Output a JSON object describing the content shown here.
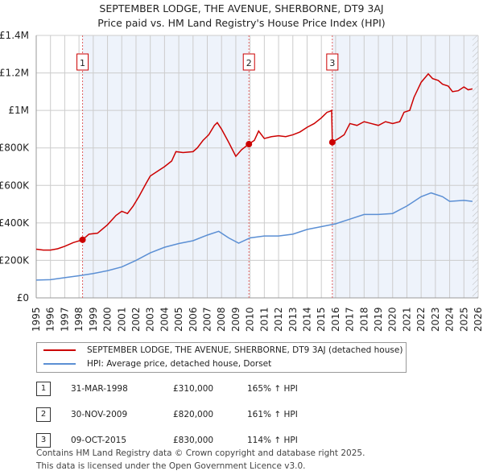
{
  "chart_data": {
    "type": "line",
    "title": "SEPTEMBER LODGE, THE AVENUE, SHERBORNE, DT9 3AJ",
    "subtitle": "Price paid vs. HM Land Registry's House Price Index (HPI)",
    "xlim": [
      1995,
      2026
    ],
    "ylim": [
      0,
      1400000
    ],
    "yticks": [
      {
        "v": 0,
        "label": "£0"
      },
      {
        "v": 200000,
        "label": "£200K"
      },
      {
        "v": 400000,
        "label": "£400K"
      },
      {
        "v": 600000,
        "label": "£600K"
      },
      {
        "v": 800000,
        "label": "£800K"
      },
      {
        "v": 1000000,
        "label": "£1M"
      },
      {
        "v": 1200000,
        "label": "£1.2M"
      },
      {
        "v": 1400000,
        "label": "£1.4M"
      }
    ],
    "xticks": [
      "1995",
      "1996",
      "1997",
      "1998",
      "1999",
      "2000",
      "2001",
      "2002",
      "2003",
      "2004",
      "2005",
      "2006",
      "2007",
      "2008",
      "2009",
      "2010",
      "2011",
      "2012",
      "2013",
      "2014",
      "2015",
      "2016",
      "2017",
      "2018",
      "2019",
      "2020",
      "2021",
      "2022",
      "2023",
      "2024",
      "2025",
      "2026"
    ],
    "series": [
      {
        "name": "SEPTEMBER LODGE, THE AVENUE, SHERBORNE, DT9 3AJ (detached house)",
        "color": "#cc0000",
        "points": [
          [
            1995,
            260000
          ],
          [
            1995.5,
            255000
          ],
          [
            1996,
            255000
          ],
          [
            1996.5,
            262000
          ],
          [
            1997,
            275000
          ],
          [
            1997.6,
            295000
          ],
          [
            1998.25,
            310000
          ],
          [
            1998.7,
            340000
          ],
          [
            1999.3,
            345000
          ],
          [
            2000,
            390000
          ],
          [
            2000.6,
            440000
          ],
          [
            2001,
            462000
          ],
          [
            2001.4,
            450000
          ],
          [
            2001.8,
            490000
          ],
          [
            2002.2,
            540000
          ],
          [
            2002.7,
            610000
          ],
          [
            2003,
            650000
          ],
          [
            2003.6,
            680000
          ],
          [
            2004,
            700000
          ],
          [
            2004.5,
            730000
          ],
          [
            2004.8,
            780000
          ],
          [
            2005.3,
            775000
          ],
          [
            2006,
            780000
          ],
          [
            2006.3,
            800000
          ],
          [
            2006.7,
            840000
          ],
          [
            2007.1,
            870000
          ],
          [
            2007.5,
            920000
          ],
          [
            2007.7,
            935000
          ],
          [
            2008,
            900000
          ],
          [
            2008.5,
            830000
          ],
          [
            2009,
            755000
          ],
          [
            2009.4,
            790000
          ],
          [
            2009.9,
            820000
          ],
          [
            2010.3,
            840000
          ],
          [
            2010.6,
            890000
          ],
          [
            2011,
            850000
          ],
          [
            2011.5,
            860000
          ],
          [
            2012,
            865000
          ],
          [
            2012.5,
            860000
          ],
          [
            2013,
            870000
          ],
          [
            2013.5,
            885000
          ],
          [
            2014,
            910000
          ],
          [
            2014.5,
            930000
          ],
          [
            2015,
            960000
          ],
          [
            2015.2,
            975000
          ],
          [
            2015.4,
            990000
          ],
          [
            2015.6,
            995000
          ],
          [
            2015.72,
            1000000
          ],
          [
            2015.77,
            830000
          ],
          [
            2016.2,
            850000
          ],
          [
            2016.6,
            870000
          ],
          [
            2017,
            930000
          ],
          [
            2017.5,
            920000
          ],
          [
            2018,
            940000
          ],
          [
            2018.5,
            930000
          ],
          [
            2019,
            920000
          ],
          [
            2019.5,
            940000
          ],
          [
            2020,
            930000
          ],
          [
            2020.5,
            940000
          ],
          [
            2020.8,
            990000
          ],
          [
            2021.2,
            1000000
          ],
          [
            2021.5,
            1070000
          ],
          [
            2022,
            1150000
          ],
          [
            2022.5,
            1195000
          ],
          [
            2022.8,
            1170000
          ],
          [
            2023.2,
            1160000
          ],
          [
            2023.5,
            1140000
          ],
          [
            2023.9,
            1130000
          ],
          [
            2024.2,
            1100000
          ],
          [
            2024.6,
            1105000
          ],
          [
            2025,
            1125000
          ],
          [
            2025.3,
            1110000
          ],
          [
            2025.6,
            1115000
          ]
        ]
      },
      {
        "name": "HPI: Average price, detached house, Dorset",
        "color": "#5b8fd4",
        "points": [
          [
            1995,
            95000
          ],
          [
            1996,
            97000
          ],
          [
            1997,
            108000
          ],
          [
            1998,
            118000
          ],
          [
            1999,
            130000
          ],
          [
            2000,
            145000
          ],
          [
            2001,
            165000
          ],
          [
            2002,
            200000
          ],
          [
            2003,
            240000
          ],
          [
            2004,
            270000
          ],
          [
            2005,
            290000
          ],
          [
            2006,
            305000
          ],
          [
            2007,
            335000
          ],
          [
            2007.8,
            355000
          ],
          [
            2008.5,
            320000
          ],
          [
            2009.2,
            292000
          ],
          [
            2010,
            320000
          ],
          [
            2011,
            330000
          ],
          [
            2012,
            330000
          ],
          [
            2013,
            340000
          ],
          [
            2014,
            365000
          ],
          [
            2015,
            380000
          ],
          [
            2016,
            395000
          ],
          [
            2017,
            420000
          ],
          [
            2018,
            445000
          ],
          [
            2019,
            445000
          ],
          [
            2020,
            450000
          ],
          [
            2021,
            490000
          ],
          [
            2022,
            540000
          ],
          [
            2022.7,
            560000
          ],
          [
            2023.5,
            540000
          ],
          [
            2024,
            515000
          ],
          [
            2025,
            520000
          ],
          [
            2025.6,
            515000
          ]
        ]
      }
    ],
    "sales": [
      {
        "label": "1",
        "x": 1998.25,
        "value": 310000,
        "date": "31-MAR-1998",
        "price": "£310,000",
        "hpi": "165% ↑ HPI"
      },
      {
        "label": "2",
        "x": 2009.92,
        "value": 820000,
        "date": "30-NOV-2009",
        "price": "£820,000",
        "hpi": "161% ↑ HPI"
      },
      {
        "label": "3",
        "x": 2015.77,
        "value": 830000,
        "date": "09-OCT-2015",
        "price": "£830,000",
        "hpi": "114% ↑ HPI"
      }
    ],
    "forecast_start": 2025.6
  },
  "footer": [
    "Contains HM Land Registry data © Crown copyright and database right 2025.",
    "This data is licensed under the Open Government Licence v3.0."
  ]
}
